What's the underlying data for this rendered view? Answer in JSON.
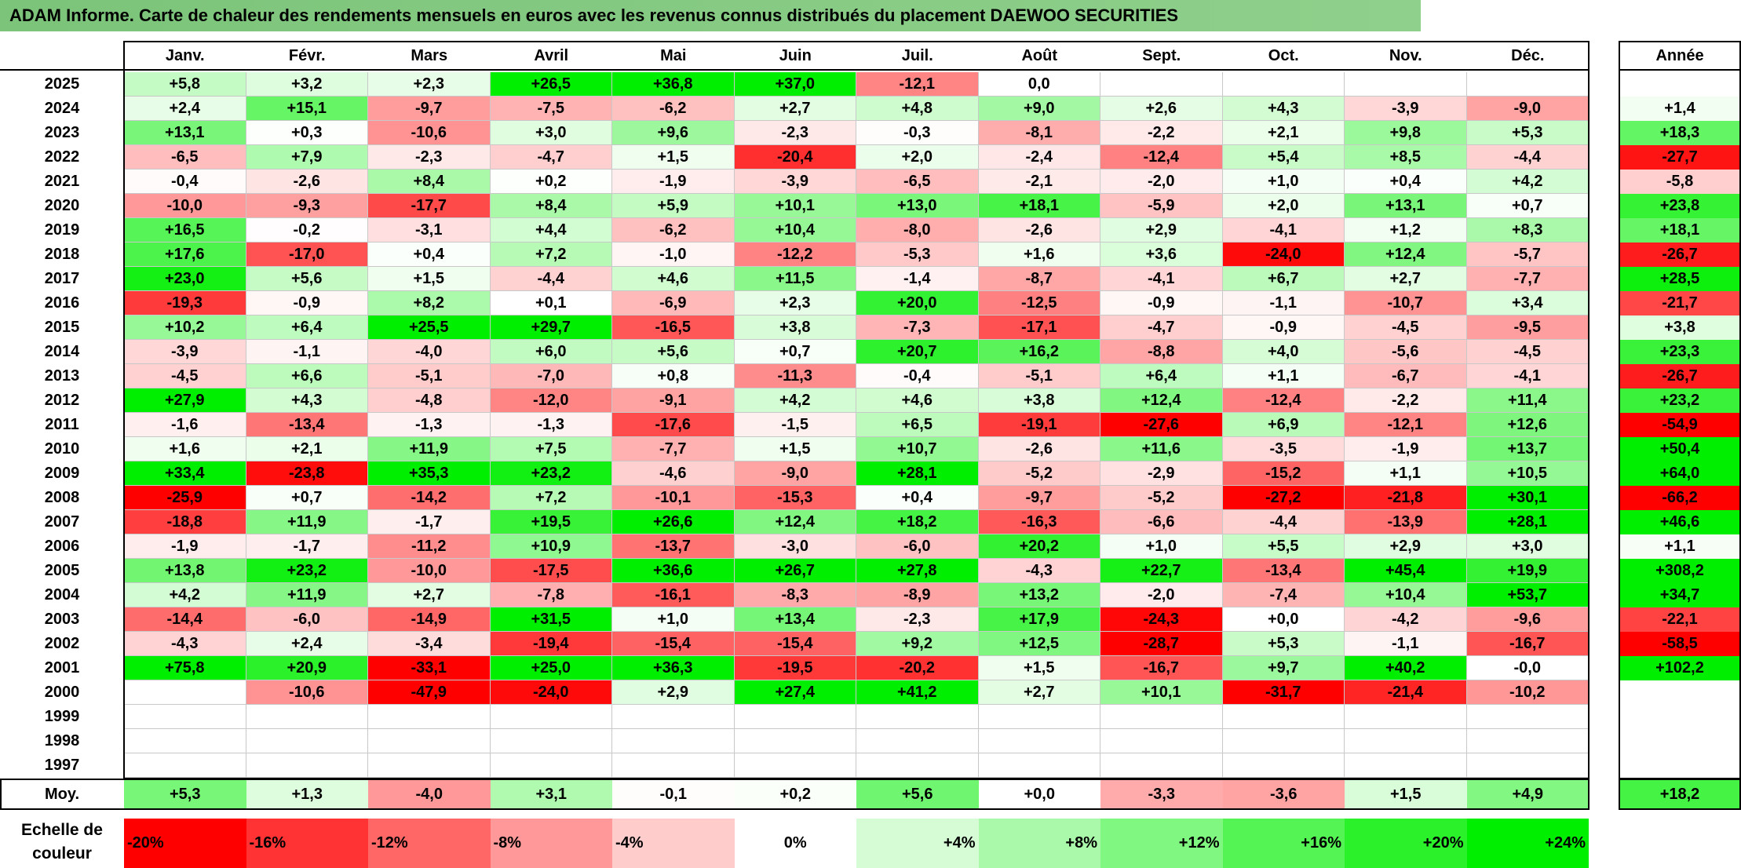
{
  "title": "ADAM Informe. Carte de chaleur des rendements mensuels en euros avec les revenus connus distribués du placement DAEWOO SECURITIES",
  "legend": {
    "label": "Echelle de couleur",
    "stops": [
      "-20%",
      "-16%",
      "-12%",
      "-8%",
      "-4%",
      "0%",
      "+4%",
      "+8%",
      "+12%",
      "+16%",
      "+20%",
      "+24%"
    ]
  },
  "chart_data": {
    "type": "heatmap",
    "title": "ADAM Informe. Carte de chaleur des rendements mensuels en euros avec les revenus connus distribués du placement DAEWOO SECURITIES",
    "columns": [
      "Janv.",
      "Févr.",
      "Mars",
      "Avril",
      "Mai",
      "Juin",
      "Juil.",
      "Août",
      "Sept.",
      "Oct.",
      "Nov.",
      "Déc."
    ],
    "year_column": "Année",
    "average_label": "Moy.",
    "rows": [
      {
        "year": "2025",
        "values": [
          "+5,8",
          "+3,2",
          "+2,3",
          "+26,5",
          "+36,8",
          "+37,0",
          "-12,1",
          "0,0",
          "",
          "",
          "",
          ""
        ],
        "annual": ""
      },
      {
        "year": "2024",
        "values": [
          "+2,4",
          "+15,1",
          "-9,7",
          "-7,5",
          "-6,2",
          "+2,7",
          "+4,8",
          "+9,0",
          "+2,6",
          "+4,3",
          "-3,9",
          "-9,0"
        ],
        "annual": "+1,4"
      },
      {
        "year": "2023",
        "values": [
          "+13,1",
          "+0,3",
          "-10,6",
          "+3,0",
          "+9,6",
          "-2,3",
          "-0,3",
          "-8,1",
          "-2,2",
          "+2,1",
          "+9,8",
          "+5,3"
        ],
        "annual": "+18,3"
      },
      {
        "year": "2022",
        "values": [
          "-6,5",
          "+7,9",
          "-2,3",
          "-4,7",
          "+1,5",
          "-20,4",
          "+2,0",
          "-2,4",
          "-12,4",
          "+5,4",
          "+8,5",
          "-4,4"
        ],
        "annual": "-27,7"
      },
      {
        "year": "2021",
        "values": [
          "-0,4",
          "-2,6",
          "+8,4",
          "+0,2",
          "-1,9",
          "-3,9",
          "-6,5",
          "-2,1",
          "-2,0",
          "+1,0",
          "+0,4",
          "+4,2"
        ],
        "annual": "-5,8"
      },
      {
        "year": "2020",
        "values": [
          "-10,0",
          "-9,3",
          "-17,7",
          "+8,4",
          "+5,9",
          "+10,1",
          "+13,0",
          "+18,1",
          "-5,9",
          "+2,0",
          "+13,1",
          "+0,7"
        ],
        "annual": "+23,8"
      },
      {
        "year": "2019",
        "values": [
          "+16,5",
          "-0,2",
          "-3,1",
          "+4,4",
          "-6,2",
          "+10,4",
          "-8,0",
          "-2,6",
          "+2,9",
          "-4,1",
          "+1,2",
          "+8,3"
        ],
        "annual": "+18,1"
      },
      {
        "year": "2018",
        "values": [
          "+17,6",
          "-17,0",
          "+0,4",
          "+7,2",
          "-1,0",
          "-12,2",
          "-5,3",
          "+1,6",
          "+3,6",
          "-24,0",
          "+12,4",
          "-5,7"
        ],
        "annual": "-26,7"
      },
      {
        "year": "2017",
        "values": [
          "+23,0",
          "+5,6",
          "+1,5",
          "-4,4",
          "+4,6",
          "+11,5",
          "-1,4",
          "-8,7",
          "-4,1",
          "+6,7",
          "+2,7",
          "-7,7"
        ],
        "annual": "+28,5"
      },
      {
        "year": "2016",
        "values": [
          "-19,3",
          "-0,9",
          "+8,2",
          "+0,1",
          "-6,9",
          "+2,3",
          "+20,0",
          "-12,5",
          "-0,9",
          "-1,1",
          "-10,7",
          "+3,4"
        ],
        "annual": "-21,7"
      },
      {
        "year": "2015",
        "values": [
          "+10,2",
          "+6,4",
          "+25,5",
          "+29,7",
          "-16,5",
          "+3,8",
          "-7,3",
          "-17,1",
          "-4,7",
          "-0,9",
          "-4,5",
          "-9,5"
        ],
        "annual": "+3,8"
      },
      {
        "year": "2014",
        "values": [
          "-3,9",
          "-1,1",
          "-4,0",
          "+6,0",
          "+5,6",
          "+0,7",
          "+20,7",
          "+16,2",
          "-8,8",
          "+4,0",
          "-5,6",
          "-4,5"
        ],
        "annual": "+23,3"
      },
      {
        "year": "2013",
        "values": [
          "-4,5",
          "+6,6",
          "-5,1",
          "-7,0",
          "+0,8",
          "-11,3",
          "-0,4",
          "-5,1",
          "+6,4",
          "+1,1",
          "-6,7",
          "-4,1"
        ],
        "annual": "-26,7"
      },
      {
        "year": "2012",
        "values": [
          "+27,9",
          "+4,3",
          "-4,8",
          "-12,0",
          "-9,1",
          "+4,2",
          "+4,6",
          "+3,8",
          "+12,4",
          "-12,4",
          "-2,2",
          "+11,4"
        ],
        "annual": "+23,2"
      },
      {
        "year": "2011",
        "values": [
          "-1,6",
          "-13,4",
          "-1,3",
          "-1,3",
          "-17,6",
          "-1,5",
          "+6,5",
          "-19,1",
          "-27,6",
          "+6,9",
          "-12,1",
          "+12,6"
        ],
        "annual": "-54,9"
      },
      {
        "year": "2010",
        "values": [
          "+1,6",
          "+2,1",
          "+11,9",
          "+7,5",
          "-7,7",
          "+1,5",
          "+10,7",
          "-2,6",
          "+11,6",
          "-3,5",
          "-1,9",
          "+13,7"
        ],
        "annual": "+50,4"
      },
      {
        "year": "2009",
        "values": [
          "+33,4",
          "-23,8",
          "+35,3",
          "+23,2",
          "-4,6",
          "-9,0",
          "+28,1",
          "-5,2",
          "-2,9",
          "-15,2",
          "+1,1",
          "+10,5"
        ],
        "annual": "+64,0"
      },
      {
        "year": "2008",
        "values": [
          "-25,9",
          "+0,7",
          "-14,2",
          "+7,2",
          "-10,1",
          "-15,3",
          "+0,4",
          "-9,7",
          "-5,2",
          "-27,2",
          "-21,8",
          "+30,1"
        ],
        "annual": "-66,2"
      },
      {
        "year": "2007",
        "values": [
          "-18,8",
          "+11,9",
          "-1,7",
          "+19,5",
          "+26,6",
          "+12,4",
          "+18,2",
          "-16,3",
          "-6,6",
          "-4,4",
          "-13,9",
          "+28,1"
        ],
        "annual": "+46,6"
      },
      {
        "year": "2006",
        "values": [
          "-1,9",
          "-1,7",
          "-11,2",
          "+10,9",
          "-13,7",
          "-3,0",
          "-6,0",
          "+20,2",
          "+1,0",
          "+5,5",
          "+2,9",
          "+3,0"
        ],
        "annual": "+1,1"
      },
      {
        "year": "2005",
        "values": [
          "+13,8",
          "+23,2",
          "-10,0",
          "-17,5",
          "+36,6",
          "+26,7",
          "+27,8",
          "-4,3",
          "+22,7",
          "-13,4",
          "+45,4",
          "+19,9"
        ],
        "annual": "+308,2"
      },
      {
        "year": "2004",
        "values": [
          "+4,2",
          "+11,9",
          "+2,7",
          "-7,8",
          "-16,1",
          "-8,3",
          "-8,9",
          "+13,2",
          "-2,0",
          "-7,4",
          "+10,4",
          "+53,7"
        ],
        "annual": "+34,7"
      },
      {
        "year": "2003",
        "values": [
          "-14,4",
          "-6,0",
          "-14,9",
          "+31,5",
          "+1,0",
          "+13,4",
          "-2,3",
          "+17,9",
          "-24,3",
          "+0,0",
          "-4,2",
          "-9,6"
        ],
        "annual": "-22,1"
      },
      {
        "year": "2002",
        "values": [
          "-4,3",
          "+2,4",
          "-3,4",
          "-19,4",
          "-15,4",
          "-15,4",
          "+9,2",
          "+12,5",
          "-28,7",
          "+5,3",
          "-1,1",
          "-16,7"
        ],
        "annual": "-58,5"
      },
      {
        "year": "2001",
        "values": [
          "+75,8",
          "+20,9",
          "-33,1",
          "+25,0",
          "+36,3",
          "-19,5",
          "-20,2",
          "+1,5",
          "-16,7",
          "+9,7",
          "+40,2",
          "-0,0"
        ],
        "annual": "+102,2"
      },
      {
        "year": "2000",
        "values": [
          "",
          "-10,6",
          "-47,9",
          "-24,0",
          "+2,9",
          "+27,4",
          "+41,2",
          "+2,7",
          "+10,1",
          "-31,7",
          "-21,4",
          "-10,2"
        ],
        "annual": ""
      },
      {
        "year": "1999",
        "values": [
          "",
          "",
          "",
          "",
          "",
          "",
          "",
          "",
          "",
          "",
          "",
          ""
        ],
        "annual": ""
      },
      {
        "year": "1998",
        "values": [
          "",
          "",
          "",
          "",
          "",
          "",
          "",
          "",
          "",
          "",
          "",
          ""
        ],
        "annual": ""
      },
      {
        "year": "1997",
        "values": [
          "",
          "",
          "",
          "",
          "",
          "",
          "",
          "",
          "",
          "",
          "",
          ""
        ],
        "annual": ""
      }
    ],
    "average": {
      "values": [
        "+5,3",
        "+1,3",
        "-4,0",
        "+3,1",
        "-0,1",
        "+0,2",
        "+5,6",
        "+0,0",
        "-3,3",
        "-3,6",
        "+1,5",
        "+4,9"
      ],
      "annual": "+18,2"
    },
    "color_scale": {
      "min": -20,
      "max": 24,
      "negative_color": "#ff0000",
      "zero_color": "#ffffff",
      "positive_color": "#00ee00"
    }
  }
}
